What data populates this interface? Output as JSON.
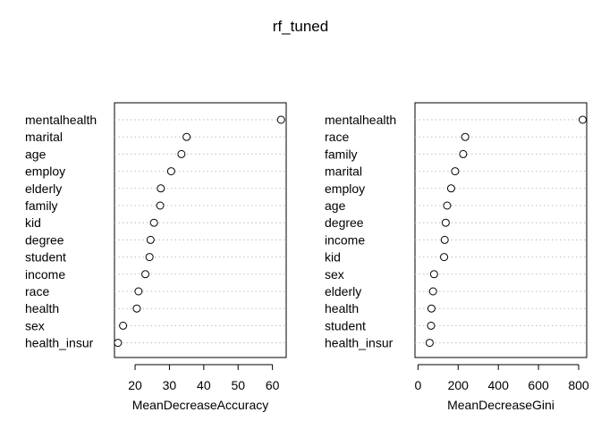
{
  "title": "rf_tuned",
  "chart_data": [
    {
      "type": "scatter",
      "variant": "dotchart",
      "xlabel": "MeanDecreaseAccuracy",
      "xlim": [
        14,
        64
      ],
      "ticks": [
        20,
        30,
        40,
        50,
        60
      ],
      "grid": false,
      "categories": [
        "mentalhealth",
        "marital",
        "age",
        "employ",
        "elderly",
        "family",
        "kid",
        "degree",
        "student",
        "income",
        "race",
        "health",
        "sex",
        "health_insur"
      ],
      "values": [
        62.5,
        35.0,
        33.5,
        30.5,
        27.5,
        27.3,
        25.5,
        24.5,
        24.2,
        23.0,
        21.0,
        20.5,
        16.5,
        15.0
      ]
    },
    {
      "type": "scatter",
      "variant": "dotchart",
      "xlabel": "MeanDecreaseGini",
      "xlim": [
        -15,
        840
      ],
      "ticks": [
        0,
        200,
        400,
        600,
        800
      ],
      "grid": false,
      "categories": [
        "mentalhealth",
        "race",
        "family",
        "marital",
        "employ",
        "age",
        "degree",
        "income",
        "kid",
        "sex",
        "elderly",
        "health",
        "student",
        "health_insur"
      ],
      "values": [
        820,
        235,
        225,
        185,
        165,
        145,
        138,
        133,
        130,
        80,
        75,
        67,
        65,
        58
      ]
    }
  ]
}
